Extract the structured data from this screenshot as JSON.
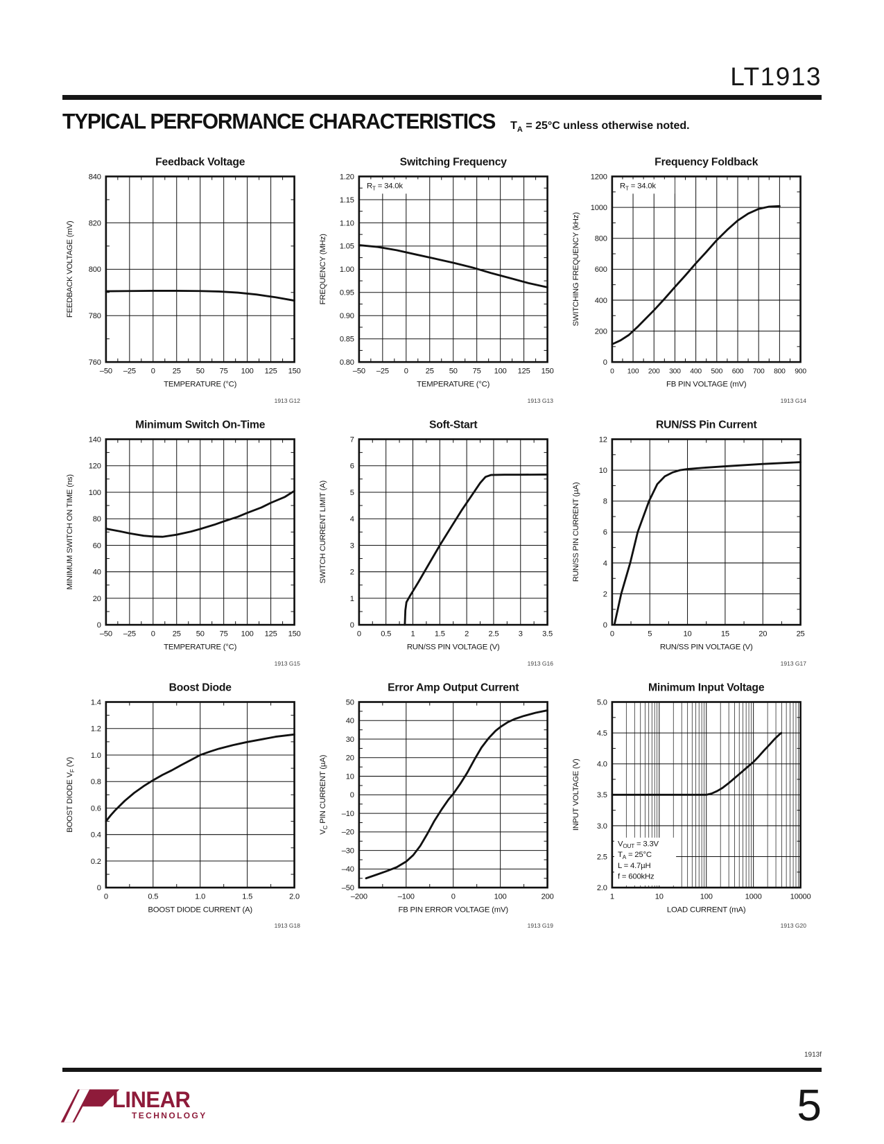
{
  "page": {
    "part_number": "LT1913",
    "section_title": "TYPICAL PERFORMANCE CHARACTERISTICS",
    "section_note": "T|A| = 25°C unless otherwise noted.",
    "footer_code": "1913f",
    "page_number": "5",
    "logo": {
      "brand": "LINEAR",
      "brand_sub": "TECHNOLOGY",
      "color": "#8e1b3a"
    },
    "ink_color": "#161616"
  },
  "chart_data": [
    {
      "type": "line",
      "title": "Feedback Voltage",
      "figure_id": "1913 G12",
      "xlabel": "TEMPERATURE (°C)",
      "ylabel": "FEEDBACK VOLTAGE (mV)",
      "xlim": [
        -50,
        150
      ],
      "ylim": [
        760,
        840
      ],
      "xlog": false,
      "grid": true,
      "xticks": [
        -50,
        -25,
        0,
        25,
        50,
        75,
        100,
        125,
        150
      ],
      "xticklabels": [
        "–50",
        "–25",
        "0",
        "25",
        "50",
        "75",
        "100",
        "125",
        "150"
      ],
      "yticks": [
        760,
        780,
        800,
        820,
        840
      ],
      "yticklabels": [
        "760",
        "780",
        "800",
        "820",
        "840"
      ],
      "annotation": null,
      "series": [
        {
          "name": "feedback-voltage",
          "points": [
            [
              -50,
              790.5
            ],
            [
              -25,
              790.6
            ],
            [
              0,
              790.7
            ],
            [
              25,
              790.7
            ],
            [
              50,
              790.6
            ],
            [
              70,
              790.4
            ],
            [
              90,
              789.9
            ],
            [
              110,
              789.1
            ],
            [
              130,
              787.9
            ],
            [
              150,
              786.5
            ]
          ]
        }
      ]
    },
    {
      "type": "line",
      "title": "Switching Frequency",
      "figure_id": "1913 G13",
      "xlabel": "TEMPERATURE (°C)",
      "ylabel": "FREQUENCY (MHz)",
      "xlim": [
        -50,
        150
      ],
      "ylim": [
        0.8,
        1.2
      ],
      "xlog": false,
      "grid": true,
      "xticks": [
        -50,
        -25,
        0,
        25,
        50,
        75,
        100,
        125,
        150
      ],
      "xticklabels": [
        "–50",
        "–25",
        "0",
        "25",
        "50",
        "75",
        "100",
        "125",
        "150"
      ],
      "yticks": [
        0.8,
        0.85,
        0.9,
        0.95,
        1.0,
        1.05,
        1.1,
        1.15,
        1.2
      ],
      "yticklabels": [
        "0.80",
        "0.85",
        "0.90",
        "0.95",
        "1.00",
        "1.05",
        "1.10",
        "1.15",
        "1.20"
      ],
      "annotation": {
        "anchor": "tl",
        "w": 84,
        "lines": [
          "R|T| = 34.0k"
        ]
      },
      "series": [
        {
          "name": "frequency",
          "points": [
            [
              -50,
              1.052
            ],
            [
              -30,
              1.048
            ],
            [
              -10,
              1.041
            ],
            [
              10,
              1.032
            ],
            [
              30,
              1.023
            ],
            [
              50,
              1.014
            ],
            [
              70,
              1.004
            ],
            [
              90,
              0.992
            ],
            [
              110,
              0.981
            ],
            [
              130,
              0.97
            ],
            [
              150,
              0.961
            ]
          ]
        }
      ]
    },
    {
      "type": "line",
      "title": "Frequency Foldback",
      "figure_id": "1913 G14",
      "xlabel": "FB PIN VOLTAGE (mV)",
      "ylabel": "SWITCHING FREQUENCY (kHz)",
      "xlim": [
        0,
        900
      ],
      "ylim": [
        0,
        1200
      ],
      "xlog": false,
      "grid": true,
      "xticks": [
        0,
        100,
        200,
        300,
        400,
        500,
        600,
        700,
        800,
        900
      ],
      "xticklabels": [
        "0",
        "100",
        "200",
        "300",
        "400",
        "500",
        "600",
        "700",
        "800",
        "900"
      ],
      "yticks": [
        0,
        200,
        400,
        600,
        800,
        1000,
        1200
      ],
      "yticklabels": [
        "0",
        "200",
        "400",
        "600",
        "800",
        "1000",
        "1200"
      ],
      "annotation": {
        "anchor": "tl",
        "w": 84,
        "lines": [
          "R|T| = 34.0k"
        ]
      },
      "series": [
        {
          "name": "switching-frequency",
          "points": [
            [
              0,
              115
            ],
            [
              40,
              140
            ],
            [
              80,
              175
            ],
            [
              120,
              225
            ],
            [
              160,
              280
            ],
            [
              200,
              335
            ],
            [
              250,
              408
            ],
            [
              300,
              485
            ],
            [
              350,
              560
            ],
            [
              400,
              638
            ],
            [
              450,
              712
            ],
            [
              500,
              788
            ],
            [
              550,
              855
            ],
            [
              600,
              915
            ],
            [
              650,
              960
            ],
            [
              700,
              990
            ],
            [
              750,
              1005
            ],
            [
              800,
              1008
            ]
          ]
        }
      ]
    },
    {
      "type": "line",
      "title": "Minimum Switch On-Time",
      "figure_id": "1913 G15",
      "xlabel": "TEMPERATURE (°C)",
      "ylabel": "MINIMUM SWITCH ON TIME (ns)",
      "xlim": [
        -50,
        150
      ],
      "ylim": [
        0,
        140
      ],
      "xlog": false,
      "grid": true,
      "xticks": [
        -50,
        -25,
        0,
        25,
        50,
        75,
        100,
        125,
        150
      ],
      "xticklabels": [
        "–50",
        "–25",
        "0",
        "25",
        "50",
        "75",
        "100",
        "125",
        "150"
      ],
      "yticks": [
        0,
        20,
        40,
        60,
        80,
        100,
        120,
        140
      ],
      "yticklabels": [
        "0",
        "20",
        "40",
        "60",
        "80",
        "100",
        "120",
        "140"
      ],
      "annotation": null,
      "series": [
        {
          "name": "min-on-time",
          "points": [
            [
              -50,
              72.5
            ],
            [
              -35,
              70.5
            ],
            [
              -25,
              69
            ],
            [
              -10,
              67.2
            ],
            [
              0,
              66.6
            ],
            [
              10,
              66.4
            ],
            [
              25,
              68
            ],
            [
              40,
              70.3
            ],
            [
              50,
              72.3
            ],
            [
              65,
              75.5
            ],
            [
              75,
              78
            ],
            [
              90,
              81.5
            ],
            [
              100,
              84.5
            ],
            [
              115,
              88.5
            ],
            [
              125,
              92
            ],
            [
              140,
              96.5
            ],
            [
              150,
              101
            ]
          ]
        }
      ]
    },
    {
      "type": "line",
      "title": "Soft-Start",
      "figure_id": "1913 G16",
      "xlabel": "RUN/SS PIN VOLTAGE (V)",
      "ylabel": "SWITCH CURRENT LIMIT (A)",
      "xlim": [
        0,
        3.5
      ],
      "ylim": [
        0,
        7
      ],
      "xlog": false,
      "grid": true,
      "xticks": [
        0,
        0.5,
        1,
        1.5,
        2,
        2.5,
        3,
        3.5
      ],
      "xticklabels": [
        "0",
        "0.5",
        "1",
        "1.5",
        "2",
        "2.5",
        "3",
        "3.5"
      ],
      "yticks": [
        0,
        1,
        2,
        3,
        4,
        5,
        6,
        7
      ],
      "yticklabels": [
        "0",
        "1",
        "2",
        "3",
        "4",
        "5",
        "6",
        "7"
      ],
      "annotation": null,
      "series": [
        {
          "name": "current-limit",
          "points": [
            [
              0.85,
              0
            ],
            [
              0.86,
              0.55
            ],
            [
              0.88,
              0.85
            ],
            [
              0.95,
              1.1
            ],
            [
              1.1,
              1.6
            ],
            [
              1.3,
              2.3
            ],
            [
              1.5,
              3.0
            ],
            [
              1.7,
              3.65
            ],
            [
              1.9,
              4.3
            ],
            [
              2.1,
              4.9
            ],
            [
              2.25,
              5.35
            ],
            [
              2.35,
              5.58
            ],
            [
              2.45,
              5.65
            ],
            [
              2.7,
              5.66
            ],
            [
              3.0,
              5.66
            ],
            [
              3.5,
              5.67
            ]
          ]
        }
      ]
    },
    {
      "type": "line",
      "title": "RUN/SS Pin Current",
      "figure_id": "1913 G17",
      "xlabel": "RUN/SS PIN VOLTAGE (V)",
      "ylabel": "RUN/SS PIN CURRENT (µA)",
      "xlim": [
        0,
        25
      ],
      "ylim": [
        0,
        12
      ],
      "xlog": false,
      "grid": true,
      "xticks": [
        0,
        5,
        10,
        15,
        20,
        25
      ],
      "xticklabels": [
        "0",
        "5",
        "10",
        "15",
        "20",
        "25"
      ],
      "yticks": [
        0,
        2,
        4,
        6,
        8,
        10,
        12
      ],
      "yticklabels": [
        "0",
        "2",
        "4",
        "6",
        "8",
        "10",
        "12"
      ],
      "annotation": null,
      "series": [
        {
          "name": "pin-current",
          "points": [
            [
              0.3,
              0
            ],
            [
              1.2,
              2
            ],
            [
              2.4,
              4
            ],
            [
              3.4,
              6
            ],
            [
              4.9,
              8
            ],
            [
              6,
              9.1
            ],
            [
              7,
              9.6
            ],
            [
              8,
              9.85
            ],
            [
              9,
              10.0
            ],
            [
              10,
              10.07
            ],
            [
              12,
              10.15
            ],
            [
              15,
              10.25
            ],
            [
              20,
              10.4
            ],
            [
              25,
              10.52
            ]
          ]
        }
      ]
    },
    {
      "type": "line",
      "title": "Boost Diode",
      "figure_id": "1913 G18",
      "xlabel": "BOOST DIODE CURRENT (A)",
      "ylabel": "BOOST DIODE V|F| (V)",
      "xlim": [
        0,
        2.0
      ],
      "ylim": [
        0,
        1.4
      ],
      "xlog": false,
      "grid": true,
      "xticks": [
        0,
        0.5,
        1.0,
        1.5,
        2.0
      ],
      "xticklabels": [
        "0",
        "0.5",
        "1.0",
        "1.5",
        "2.0"
      ],
      "yticks": [
        0,
        0.2,
        0.4,
        0.6,
        0.8,
        1.0,
        1.2,
        1.4
      ],
      "yticklabels": [
        "0",
        "0.2",
        "0.4",
        "0.6",
        "0.8",
        "1.0",
        "1.2",
        "1.4"
      ],
      "annotation": null,
      "series": [
        {
          "name": "diode-vf",
          "points": [
            [
              0,
              0.5
            ],
            [
              0.05,
              0.545
            ],
            [
              0.1,
              0.585
            ],
            [
              0.2,
              0.655
            ],
            [
              0.3,
              0.715
            ],
            [
              0.4,
              0.765
            ],
            [
              0.5,
              0.81
            ],
            [
              0.6,
              0.85
            ],
            [
              0.7,
              0.885
            ],
            [
              0.8,
              0.925
            ],
            [
              0.9,
              0.962
            ],
            [
              1.0,
              1.0
            ],
            [
              1.1,
              1.025
            ],
            [
              1.2,
              1.048
            ],
            [
              1.35,
              1.075
            ],
            [
              1.5,
              1.098
            ],
            [
              1.65,
              1.118
            ],
            [
              1.8,
              1.138
            ],
            [
              2.0,
              1.155
            ]
          ]
        }
      ]
    },
    {
      "type": "line",
      "title": "Error Amp Output Current",
      "figure_id": "1913 G19",
      "xlabel": "FB PIN ERROR VOLTAGE (mV)",
      "ylabel": "V|C| PIN CURRENT (µA)",
      "xlim": [
        -200,
        200
      ],
      "ylim": [
        -50,
        50
      ],
      "xlog": false,
      "grid": true,
      "xticks": [
        -200,
        -100,
        0,
        100,
        200
      ],
      "xticklabels": [
        "–200",
        "–100",
        "0",
        "100",
        "200"
      ],
      "yticks": [
        -50,
        -40,
        -30,
        -20,
        -10,
        0,
        10,
        20,
        30,
        40,
        50
      ],
      "yticklabels": [
        "–50",
        "–40",
        "–30",
        "–20",
        "–10",
        "0",
        "10",
        "20",
        "30",
        "40",
        "50"
      ],
      "annotation": null,
      "series": [
        {
          "name": "vc-current",
          "points": [
            [
              -185,
              -45
            ],
            [
              -160,
              -42.8
            ],
            [
              -140,
              -41
            ],
            [
              -120,
              -39
            ],
            [
              -100,
              -36
            ],
            [
              -85,
              -32.5
            ],
            [
              -70,
              -27.5
            ],
            [
              -55,
              -21
            ],
            [
              -40,
              -14
            ],
            [
              -25,
              -8
            ],
            [
              -10,
              -2.5
            ],
            [
              0,
              0.5
            ],
            [
              15,
              6
            ],
            [
              30,
              12
            ],
            [
              45,
              19
            ],
            [
              60,
              25.5
            ],
            [
              75,
              30.5
            ],
            [
              90,
              34.5
            ],
            [
              100,
              36.5
            ],
            [
              115,
              39
            ],
            [
              130,
              40.8
            ],
            [
              150,
              42.5
            ],
            [
              175,
              44.2
            ],
            [
              200,
              45.5
            ]
          ]
        }
      ]
    },
    {
      "type": "line",
      "title": "Minimum Input Voltage",
      "figure_id": "1913 G20",
      "xlabel": "LOAD CURRENT (mA)",
      "ylabel": "INPUT VOLTAGE (V)",
      "xlim": [
        1,
        10000
      ],
      "ylim": [
        2.0,
        5.0
      ],
      "xlog": true,
      "grid": true,
      "xticks": [
        1,
        10,
        100,
        1000,
        10000
      ],
      "xticklabels": [
        "1",
        "10",
        "100",
        "1000",
        "10000"
      ],
      "yticks": [
        2.0,
        2.5,
        3.0,
        3.5,
        4.0,
        4.5,
        5.0
      ],
      "yticklabels": [
        "2.0",
        "2.5",
        "3.0",
        "3.5",
        "4.0",
        "4.5",
        "5.0"
      ],
      "annotation": {
        "anchor": "bl",
        "w": 88,
        "lines": [
          "V|OUT| = 3.3V",
          "T|A| = 25°C",
          "L = 4.7µH",
          "f = 600kHz"
        ]
      },
      "series": [
        {
          "name": "min-input-voltage",
          "points": [
            [
              1,
              3.5
            ],
            [
              3,
              3.5
            ],
            [
              10,
              3.5
            ],
            [
              30,
              3.5
            ],
            [
              60,
              3.5
            ],
            [
              100,
              3.5
            ],
            [
              130,
              3.52
            ],
            [
              170,
              3.56
            ],
            [
              220,
              3.61
            ],
            [
              300,
              3.69
            ],
            [
              400,
              3.77
            ],
            [
              550,
              3.86
            ],
            [
              700,
              3.93
            ],
            [
              900,
              4.0
            ],
            [
              1000,
              4.03
            ],
            [
              1300,
              4.12
            ],
            [
              1700,
              4.22
            ],
            [
              2200,
              4.31
            ],
            [
              2800,
              4.4
            ],
            [
              3500,
              4.47
            ],
            [
              3900,
              4.5
            ]
          ]
        }
      ]
    }
  ]
}
